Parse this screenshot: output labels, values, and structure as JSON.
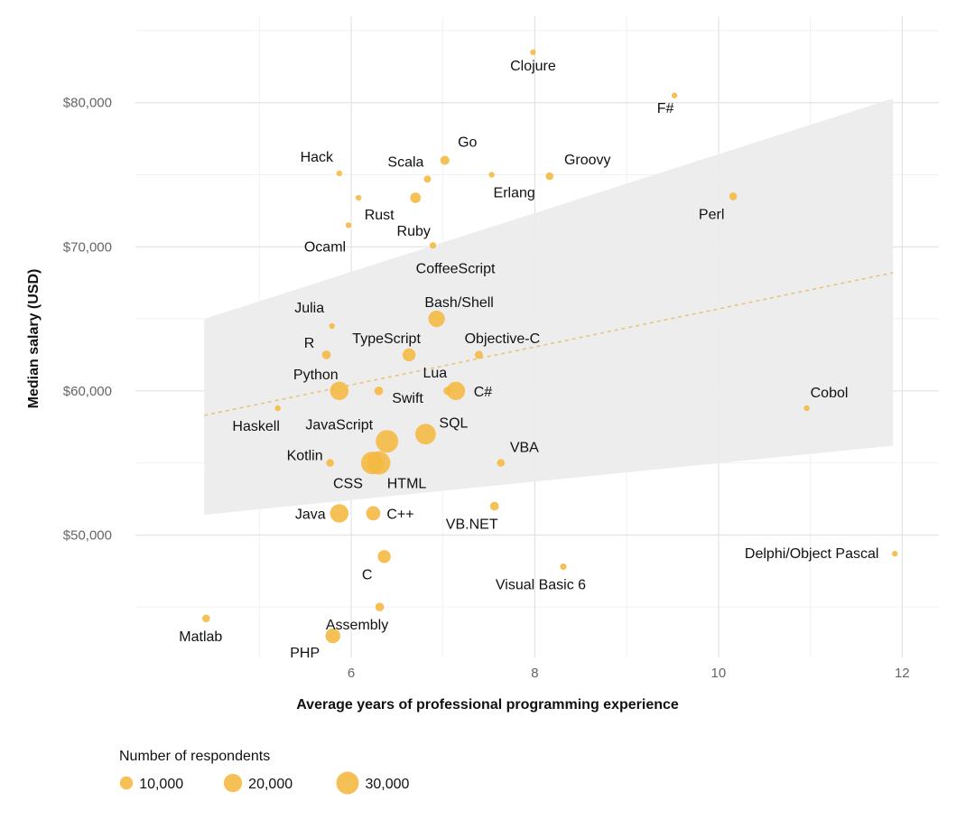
{
  "chart_data": {
    "type": "scatter",
    "xlabel": "Average years of professional programming experience",
    "ylabel": "Median salary (USD)",
    "xlim": [
      3.65,
      12.4
    ],
    "ylim": [
      41500,
      86000
    ],
    "x_ticks": [
      6,
      8,
      10,
      12
    ],
    "y_ticks": [
      50000,
      60000,
      70000,
      80000
    ],
    "y_tick_labels": [
      "$50,000",
      "$60,000",
      "$70,000",
      "$80,000"
    ],
    "grid": true,
    "point_color": "#F4B942",
    "band_color": "#EBEBEB",
    "trend_color": "#E8C47C",
    "trend": {
      "x": [
        4.4,
        11.9
      ],
      "y": [
        58300,
        68200
      ]
    },
    "band": {
      "x": [
        4.4,
        11.9
      ],
      "upper": [
        65000,
        80300
      ],
      "lower": [
        51400,
        56200
      ]
    },
    "points": [
      {
        "label": "Clojure",
        "x": 7.98,
        "y": 83500,
        "n": 700
      },
      {
        "label": "F#",
        "x": 9.52,
        "y": 80500,
        "n": 900
      },
      {
        "label": "Hack",
        "x": 5.87,
        "y": 75100,
        "n": 200
      },
      {
        "label": "Go",
        "x": 7.02,
        "y": 76000,
        "n": 5000
      },
      {
        "label": "Scala",
        "x": 6.83,
        "y": 74700,
        "n": 3000
      },
      {
        "label": "Groovy",
        "x": 8.16,
        "y": 74900,
        "n": 3500
      },
      {
        "label": "Erlang",
        "x": 7.53,
        "y": 75000,
        "n": 700
      },
      {
        "label": "Rust",
        "x": 6.08,
        "y": 73400,
        "n": 2000
      },
      {
        "label": "Perl",
        "x": 10.16,
        "y": 73500,
        "n": 3500
      },
      {
        "label": "Ruby",
        "x": 6.7,
        "y": 73400,
        "n": 6500
      },
      {
        "label": "Ocaml",
        "x": 5.97,
        "y": 71500,
        "n": 300
      },
      {
        "label": "CoffeeScript",
        "x": 6.89,
        "y": 70100,
        "n": 2500
      },
      {
        "label": "Bash/Shell",
        "x": 6.93,
        "y": 65000,
        "n": 16000
      },
      {
        "label": "Julia",
        "x": 5.79,
        "y": 64500,
        "n": 500
      },
      {
        "label": "TypeScript",
        "x": 6.63,
        "y": 62500,
        "n": 10000
      },
      {
        "label": "Objective-C",
        "x": 7.39,
        "y": 62500,
        "n": 4000
      },
      {
        "label": "R",
        "x": 5.73,
        "y": 62500,
        "n": 4500
      },
      {
        "label": "Python",
        "x": 5.87,
        "y": 60000,
        "n": 20000
      },
      {
        "label": "Swift",
        "x": 6.3,
        "y": 60000,
        "n": 4500
      },
      {
        "label": "Lua",
        "x": 7.05,
        "y": 60000,
        "n": 4000
      },
      {
        "label": "C#",
        "x": 7.14,
        "y": 60000,
        "n": 20000
      },
      {
        "label": "Cobol",
        "x": 10.96,
        "y": 58800,
        "n": 150
      },
      {
        "label": "Haskell",
        "x": 5.2,
        "y": 58800,
        "n": 2000
      },
      {
        "label": "SQL",
        "x": 6.81,
        "y": 57000,
        "n": 25000
      },
      {
        "label": "JavaScript",
        "x": 6.39,
        "y": 56500,
        "n": 30000
      },
      {
        "label": "CSS",
        "x": 6.23,
        "y": 55000,
        "n": 30000
      },
      {
        "label": "HTML",
        "x": 6.3,
        "y": 55000,
        "n": 32000
      },
      {
        "label": "Kotlin",
        "x": 5.77,
        "y": 55000,
        "n": 3500
      },
      {
        "label": "VBA",
        "x": 7.63,
        "y": 55000,
        "n": 3500
      },
      {
        "label": "C++",
        "x": 6.24,
        "y": 51500,
        "n": 12000
      },
      {
        "label": "Java",
        "x": 5.87,
        "y": 51500,
        "n": 20000
      },
      {
        "label": "VB.NET",
        "x": 7.56,
        "y": 52000,
        "n": 4500
      },
      {
        "label": "Delphi/Object Pascal",
        "x": 11.92,
        "y": 48700,
        "n": 2000
      },
      {
        "label": "C",
        "x": 6.36,
        "y": 48500,
        "n": 10000
      },
      {
        "label": "Visual Basic 6",
        "x": 8.31,
        "y": 47800,
        "n": 2500
      },
      {
        "label": "Assembly",
        "x": 6.31,
        "y": 45000,
        "n": 4500
      },
      {
        "label": "Matlab",
        "x": 4.42,
        "y": 44200,
        "n": 3500
      },
      {
        "label": "PHP",
        "x": 5.8,
        "y": 43000,
        "n": 13000
      }
    ],
    "legend": {
      "title": "Number of respondents",
      "items": [
        {
          "label": "10,000",
          "n": 10000
        },
        {
          "label": "20,000",
          "n": 20000
        },
        {
          "label": "30,000",
          "n": 30000
        }
      ]
    }
  }
}
